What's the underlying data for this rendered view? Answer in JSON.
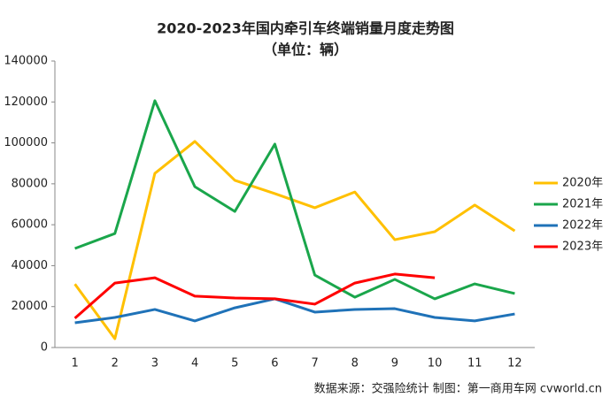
{
  "chart_data": {
    "type": "line",
    "title": "2020-2023年国内牵引车终端销量月度走势图",
    "subtitle": "（单位：辆）",
    "source": "数据来源：交强险统计   制图：第一商用车网 cvworld.cn",
    "categories": [
      "1",
      "2",
      "3",
      "4",
      "5",
      "6",
      "7",
      "8",
      "9",
      "10",
      "11",
      "12"
    ],
    "series": [
      {
        "name": "2020年",
        "color": "#ffc000",
        "values": [
          31000,
          4300,
          85100,
          100700,
          81700,
          75200,
          68300,
          76000,
          52700,
          56600,
          69600,
          57000
        ]
      },
      {
        "name": "2021年",
        "color": "#1aa64b",
        "values": [
          48400,
          55700,
          120600,
          78600,
          66500,
          99400,
          35400,
          24600,
          33300,
          23800,
          31100,
          26400
        ]
      },
      {
        "name": "2022年",
        "color": "#1f72b8",
        "values": [
          12100,
          14700,
          18600,
          13000,
          19400,
          23800,
          17300,
          18600,
          19000,
          14700,
          13000,
          16400
        ]
      },
      {
        "name": "2023年",
        "color": "#ff0000",
        "values": [
          14300,
          31500,
          34100,
          25100,
          24200,
          23800,
          21200,
          31500,
          35900,
          34100,
          null,
          null
        ]
      }
    ],
    "ylim": [
      0,
      140000
    ],
    "yticks": [
      0,
      20000,
      40000,
      60000,
      80000,
      100000,
      120000,
      140000
    ],
    "legend": "right"
  }
}
